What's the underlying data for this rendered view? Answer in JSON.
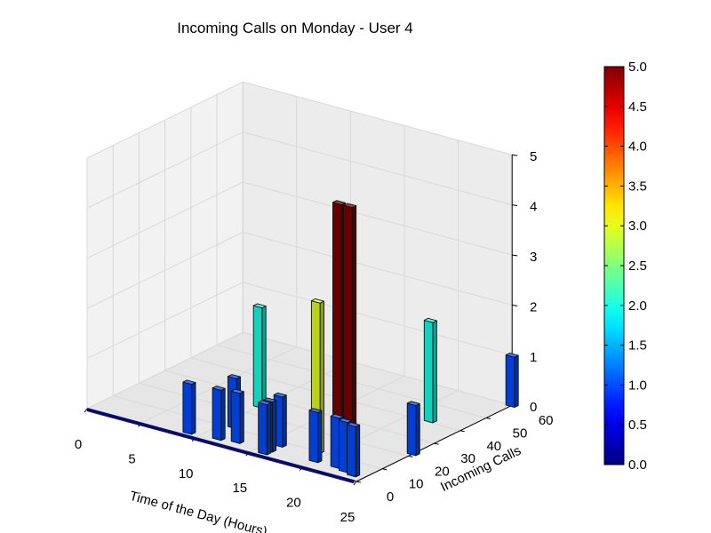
{
  "chart_data": {
    "type": "bar3d",
    "title": "Incoming Calls on Monday - User 4",
    "xlabel": "Time of the Day (Hours)",
    "ylabel": "Incoming Calls",
    "zlabel": "",
    "xlim": [
      0,
      25
    ],
    "ylim": [
      0,
      60
    ],
    "zlim": [
      0,
      5
    ],
    "x_ticks": [
      "0",
      "5",
      "10",
      "15",
      "20",
      "25"
    ],
    "y_ticks": [
      "0",
      "10",
      "20",
      "30",
      "40",
      "50",
      "60"
    ],
    "z_ticks": [
      "0",
      "1",
      "2",
      "3",
      "4",
      "5"
    ],
    "colorbar": {
      "range": [
        0,
        5
      ],
      "ticks": [
        "0.0",
        "0.5",
        "1.0",
        "1.5",
        "2.0",
        "2.5",
        "3.0",
        "3.5",
        "4.0",
        "4.5",
        "5.0"
      ],
      "colormap": "jet"
    },
    "grid": true,
    "bars": [
      {
        "x": 9,
        "y": 2,
        "z": 1
      },
      {
        "x": 11.5,
        "y": 3,
        "z": 1
      },
      {
        "x": 10,
        "y": 25,
        "z": 2
      },
      {
        "x": 11,
        "y": 11,
        "z": 1
      },
      {
        "x": 13,
        "y": 4,
        "z": 1
      },
      {
        "x": 16,
        "y": 4,
        "z": 1
      },
      {
        "x": 16,
        "y": 2,
        "z": 1
      },
      {
        "x": 16,
        "y": 8,
        "z": 1
      },
      {
        "x": 19,
        "y": 10,
        "z": 3
      },
      {
        "x": 20,
        "y": 5,
        "z": 1
      },
      {
        "x": 20.5,
        "y": 12,
        "z": 5
      },
      {
        "x": 21.5,
        "y": 12,
        "z": 5
      },
      {
        "x": 22,
        "y": 5,
        "z": 1
      },
      {
        "x": 23,
        "y": 4,
        "z": 1
      },
      {
        "x": 24,
        "y": 3,
        "z": 1
      },
      {
        "x": 22,
        "y": 41,
        "z": 2
      },
      {
        "x": 25,
        "y": 22,
        "z": 1
      },
      {
        "x": 25,
        "y": 60,
        "z": 1
      }
    ]
  }
}
